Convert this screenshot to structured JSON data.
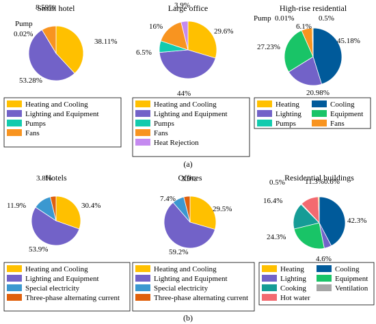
{
  "figure": {
    "panel_a_label": "(a)",
    "panel_b_label": "(b)"
  },
  "colors": {
    "heating_cooling": "#FFC000",
    "lighting": "#7262C8",
    "pumps": "#12CBAE",
    "fans": "#F89420",
    "heat_rejection": "#C58AF0",
    "cooling_dark": "#005A9A",
    "equipment": "#19C467",
    "special": "#3B98D0",
    "three_phase": "#E0600C",
    "cooking": "#169C96",
    "ventilation": "#A6A6A6",
    "hot_water": "#F36A70"
  },
  "chart_data": [
    {
      "type": "pie",
      "title": "Small hotel",
      "slices": [
        {
          "label": "Heating and Cooling",
          "value": 38.11,
          "color": "heating_cooling",
          "data_label": "38.11%"
        },
        {
          "label": "Lighting and Equipment",
          "value": 53.28,
          "color": "lighting",
          "data_label": "53.28%"
        },
        {
          "label": "Pumps",
          "value": 0.02,
          "color": "pumps",
          "data_label": "0.02%",
          "prefix": "Pump"
        },
        {
          "label": "Fans",
          "value": 8.59,
          "color": "fans",
          "data_label": "8.59%"
        }
      ],
      "legend": [
        "Heating and Cooling",
        "Lighting and Equipment",
        "Pumps",
        "Fans"
      ]
    },
    {
      "type": "pie",
      "title": "Large office",
      "slices": [
        {
          "label": "Heating and Cooling",
          "value": 29.6,
          "color": "heating_cooling",
          "data_label": "29.6%"
        },
        {
          "label": "Lighting and Equipment",
          "value": 44,
          "color": "lighting",
          "data_label": "44%"
        },
        {
          "label": "Pumps",
          "value": 6.5,
          "color": "pumps",
          "data_label": "6.5%"
        },
        {
          "label": "Fans",
          "value": 16,
          "color": "fans",
          "data_label": "16%"
        },
        {
          "label": "Heat Rejection",
          "value": 3.9,
          "color": "heat_rejection",
          "data_label": "3.9%"
        }
      ],
      "legend": [
        "Heating and Cooling",
        "Lighting and Equipment",
        "Pumps",
        "Fans",
        "Heat Rejection"
      ]
    },
    {
      "type": "pie",
      "title": "High-rise residential",
      "slices": [
        {
          "label": "Cooling",
          "value": 45.18,
          "color": "cooling_dark",
          "data_label": "45.18%"
        },
        {
          "label": "Lighting",
          "value": 20.98,
          "color": "lighting",
          "data_label": "20.98%"
        },
        {
          "label": "Equipment",
          "value": 27.23,
          "color": "equipment",
          "data_label": "27.23%"
        },
        {
          "label": "Fans",
          "value": 6.1,
          "color": "fans",
          "data_label": "6.1%"
        },
        {
          "label": "Heating",
          "value": 0.5,
          "color": "heating_cooling",
          "data_label": "0.5%"
        },
        {
          "label": "Pumps",
          "value": 0.01,
          "color": "pumps",
          "data_label": "0.01%",
          "prefix": "Pump"
        }
      ],
      "legend": [
        "Heating",
        "Cooling",
        "Lighting",
        "Equipment",
        "Pumps",
        "Fans"
      ]
    },
    {
      "type": "pie",
      "title": "Hotels",
      "slices": [
        {
          "label": "Heating and Cooling",
          "value": 30.4,
          "color": "heating_cooling",
          "data_label": "30.4%"
        },
        {
          "label": "Lighting and Equipment",
          "value": 53.9,
          "color": "lighting",
          "data_label": "53.9%"
        },
        {
          "label": "Special electricity",
          "value": 11.9,
          "color": "special",
          "data_label": "11.9%"
        },
        {
          "label": "Three-phase alternating current",
          "value": 3.8,
          "color": "three_phase",
          "data_label": "3.8%"
        }
      ],
      "legend": [
        "Heating and Cooling",
        "Lighting and Equipment",
        "Special electricity",
        "Three-phase alternating current"
      ]
    },
    {
      "type": "pie",
      "title": "Offices",
      "slices": [
        {
          "label": "Heating and Cooling",
          "value": 29.5,
          "color": "heating_cooling",
          "data_label": "29.5%"
        },
        {
          "label": "Lighting and Equipment",
          "value": 59.2,
          "color": "lighting",
          "data_label": "59.2%"
        },
        {
          "label": "Special electricity",
          "value": 7.4,
          "color": "special",
          "data_label": "7.4%"
        },
        {
          "label": "Three-phase alternating current",
          "value": 3.9,
          "color": "three_phase",
          "data_label": "3.9%"
        }
      ],
      "legend": [
        "Heating and Cooling",
        "Lighting and Equipment",
        "Special electricity",
        "Three-phase alternating current"
      ]
    },
    {
      "type": "pie",
      "title": "Residential buildings",
      "slices": [
        {
          "label": "Cooling",
          "value": 42.3,
          "color": "cooling_dark",
          "data_label": "42.3%"
        },
        {
          "label": "Lighting",
          "value": 4.6,
          "color": "lighting",
          "data_label": "4.6%"
        },
        {
          "label": "Equipment",
          "value": 24.3,
          "color": "equipment",
          "data_label": "24.3%"
        },
        {
          "label": "Cooking",
          "value": 16.4,
          "color": "cooking",
          "data_label": "16.4%"
        },
        {
          "label": "Ventilation",
          "value": 0.5,
          "color": "ventilation",
          "data_label": "0.5%"
        },
        {
          "label": "Hot water",
          "value": 11.3,
          "color": "hot_water",
          "data_label": "11.3%"
        },
        {
          "label": "Heating",
          "value": 0.6,
          "color": "heating_cooling",
          "data_label": "0.6%"
        }
      ],
      "legend": [
        "Heating",
        "Cooling",
        "Lighting",
        "Equipment",
        "Cooking",
        "Ventilation",
        "Hot water"
      ]
    }
  ]
}
